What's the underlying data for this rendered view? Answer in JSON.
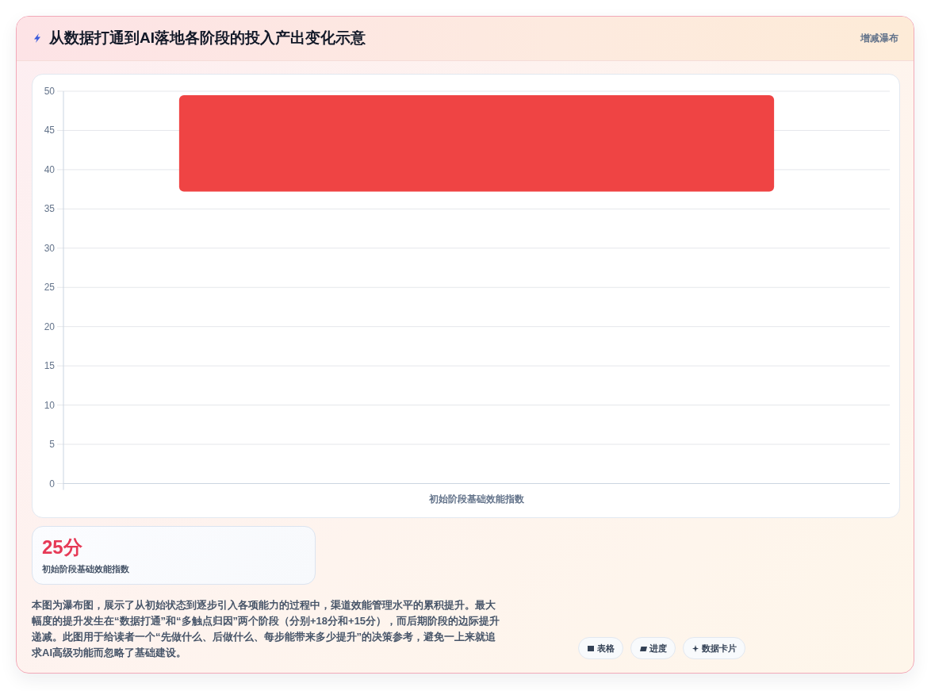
{
  "chart_data": [
    {
      "type": "bar",
      "title": "从数据打通到AI落地各阶段的投入产出变化示意",
      "subtitle": "增减瀑布",
      "categories": [
        "初始阶段基础效能指数"
      ],
      "values": [
        12.3
      ],
      "base": [
        37.2
      ],
      "color": "#ef4444",
      "ylim": [
        0,
        50
      ],
      "yticks": [
        0,
        5,
        10,
        15,
        20,
        25,
        30,
        35,
        40,
        45,
        50
      ],
      "grid": "y",
      "annotations": [
        "本图为瀑布图，展示了从初始状态到逐步引入各项能力的过程中，渠道效能管理水平的累积提升。最大幅度的提升发生在“数据打通”和“多触点归因”两个阶段（分别+18分和+15分），而后期阶段的边际提升递减。此图用于给读者一个“先做什么、后做什么、每步能带来多少提升”的决策参考，避免一上来就追求AI高级功能而忽略了基础建设。",
        "表格",
        "进度",
        "数据卡片"
      ]
    },
    {
      "type": "other",
      "title": "25分",
      "subtitle": "初始阶段基础效能指数"
    }
  ]
}
